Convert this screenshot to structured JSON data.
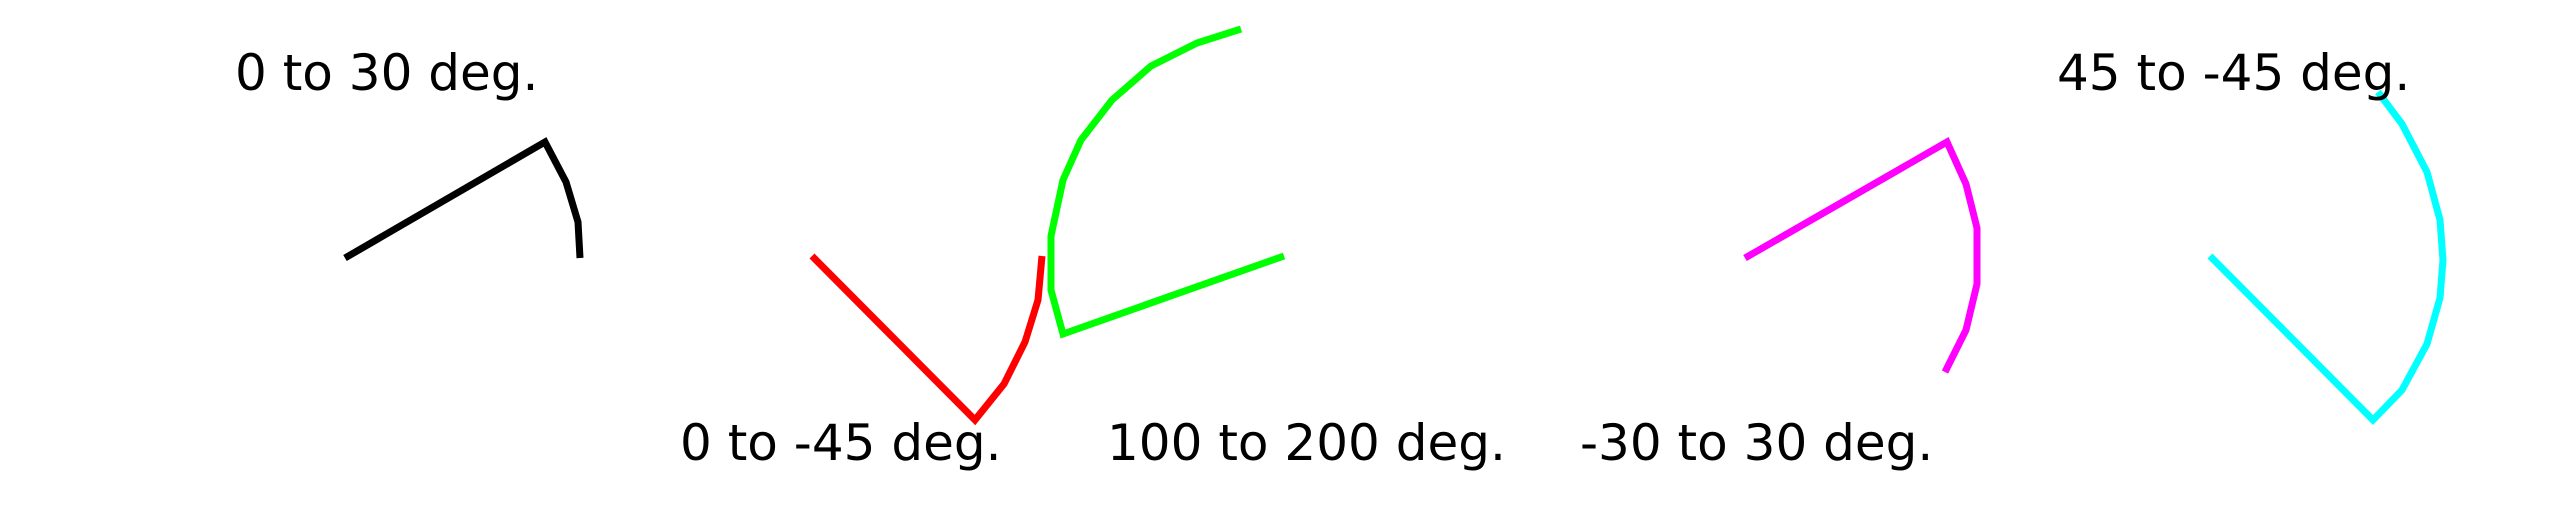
{
  "arcs": [
    {
      "label": "0 to 30 deg.",
      "start_deg": 0,
      "end_deg": 30,
      "color": "#000000"
    },
    {
      "label": "0 to -45 deg.",
      "start_deg": 0,
      "end_deg": -45,
      "color": "#ff0000"
    },
    {
      "label": "100 to 200 deg.",
      "start_deg": 100,
      "end_deg": 200,
      "color": "#00ff00"
    },
    {
      "label": "-30 to 30 deg.",
      "start_deg": -30,
      "end_deg": 30,
      "color": "#ff00ff"
    },
    {
      "label": "45 to -45 deg.",
      "start_deg": 45,
      "end_deg": -45,
      "color": "#00ffff"
    }
  ]
}
